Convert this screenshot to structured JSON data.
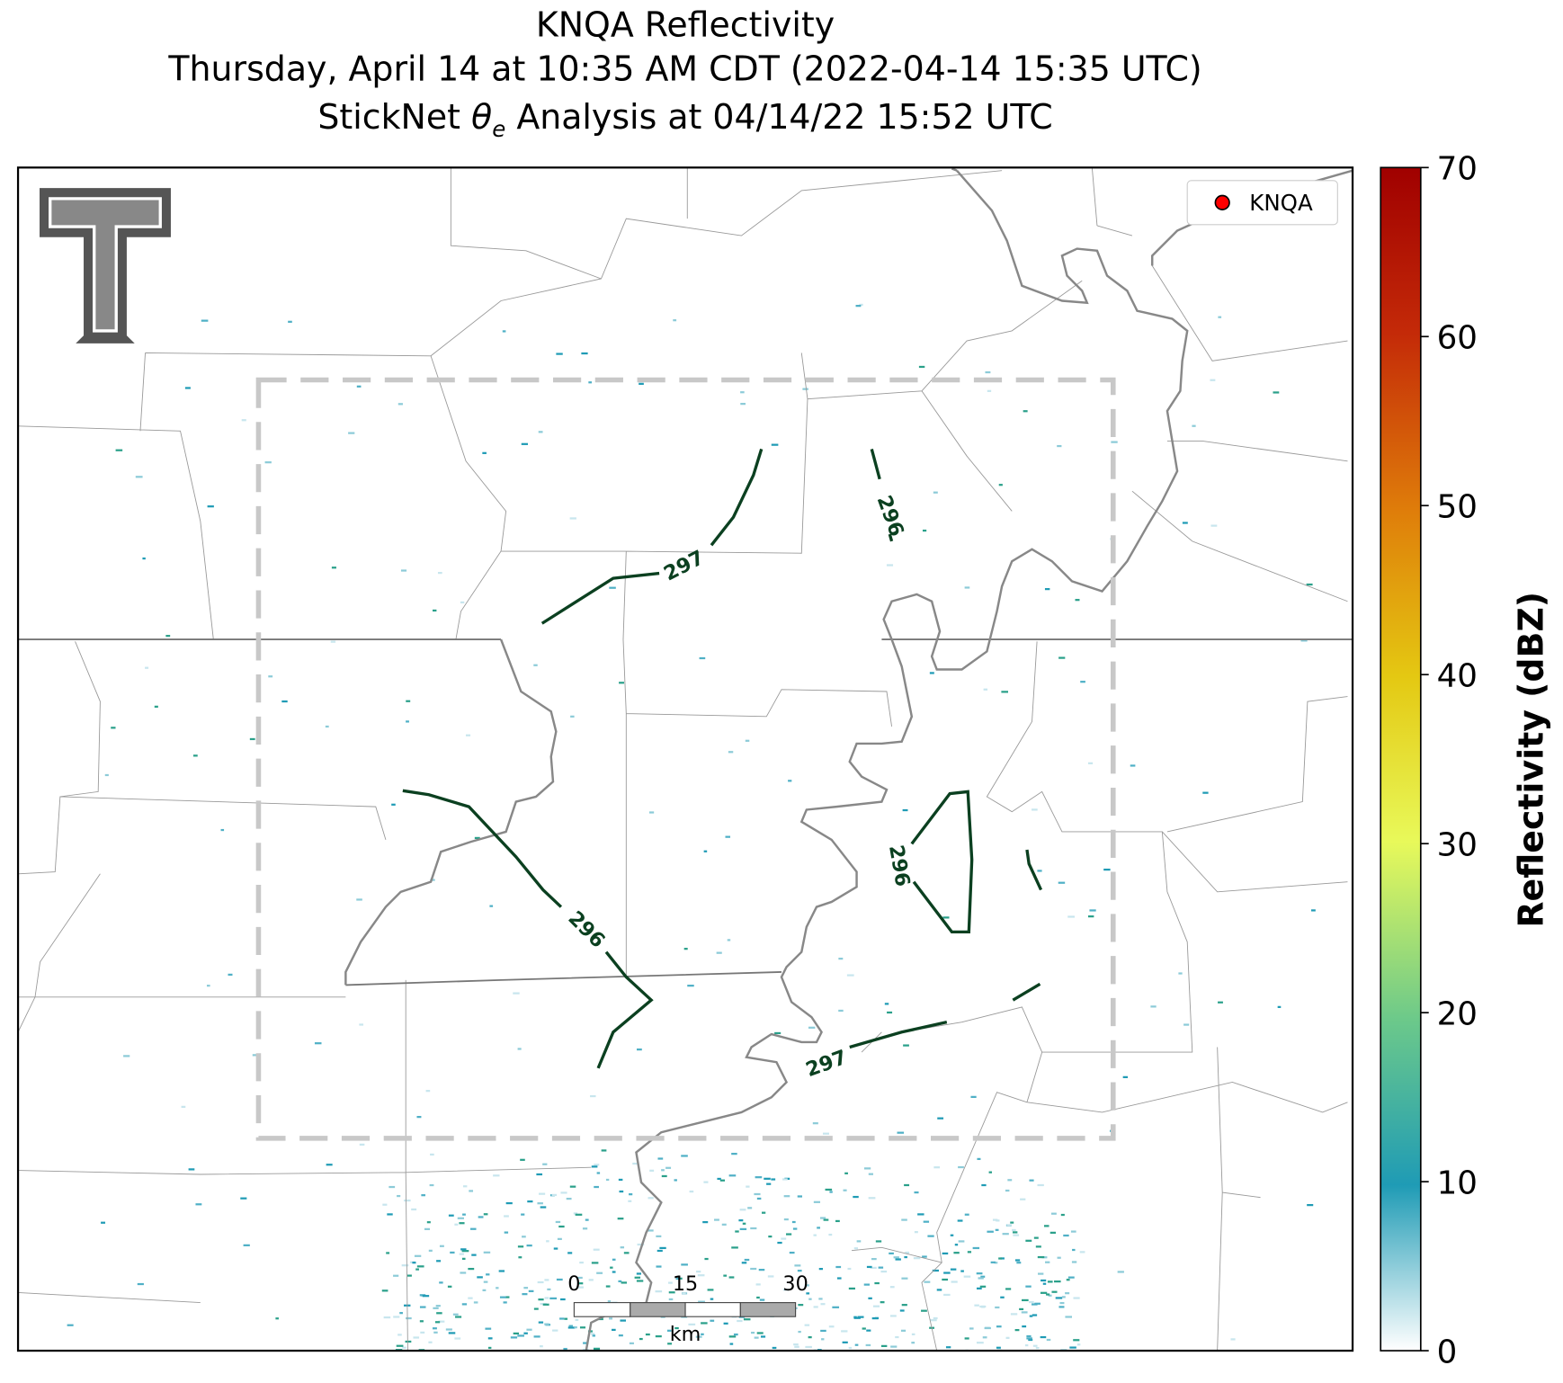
{
  "title": {
    "line1": "KNQA Reflectivity",
    "line2": "Thursday, April 14 at 10:35 AM CDT (2022-04-14 15:35 UTC)",
    "line3": [
      "StickNet ",
      "θ",
      "e",
      " Analysis at 04/14/22 15:52 UTC"
    ]
  },
  "legend": {
    "label": "KNQA",
    "color": "#ff0000"
  },
  "contour_labels": [
    297,
    296,
    296,
    297
  ],
  "scale_bar": {
    "ticks": [
      0,
      15,
      30
    ],
    "unit": "km"
  },
  "colorbar": {
    "label": "Reflectivity (dBZ)",
    "lim": [
      0,
      70
    ],
    "ticks": [
      0,
      10,
      20,
      30,
      40,
      50,
      60,
      70
    ]
  }
}
